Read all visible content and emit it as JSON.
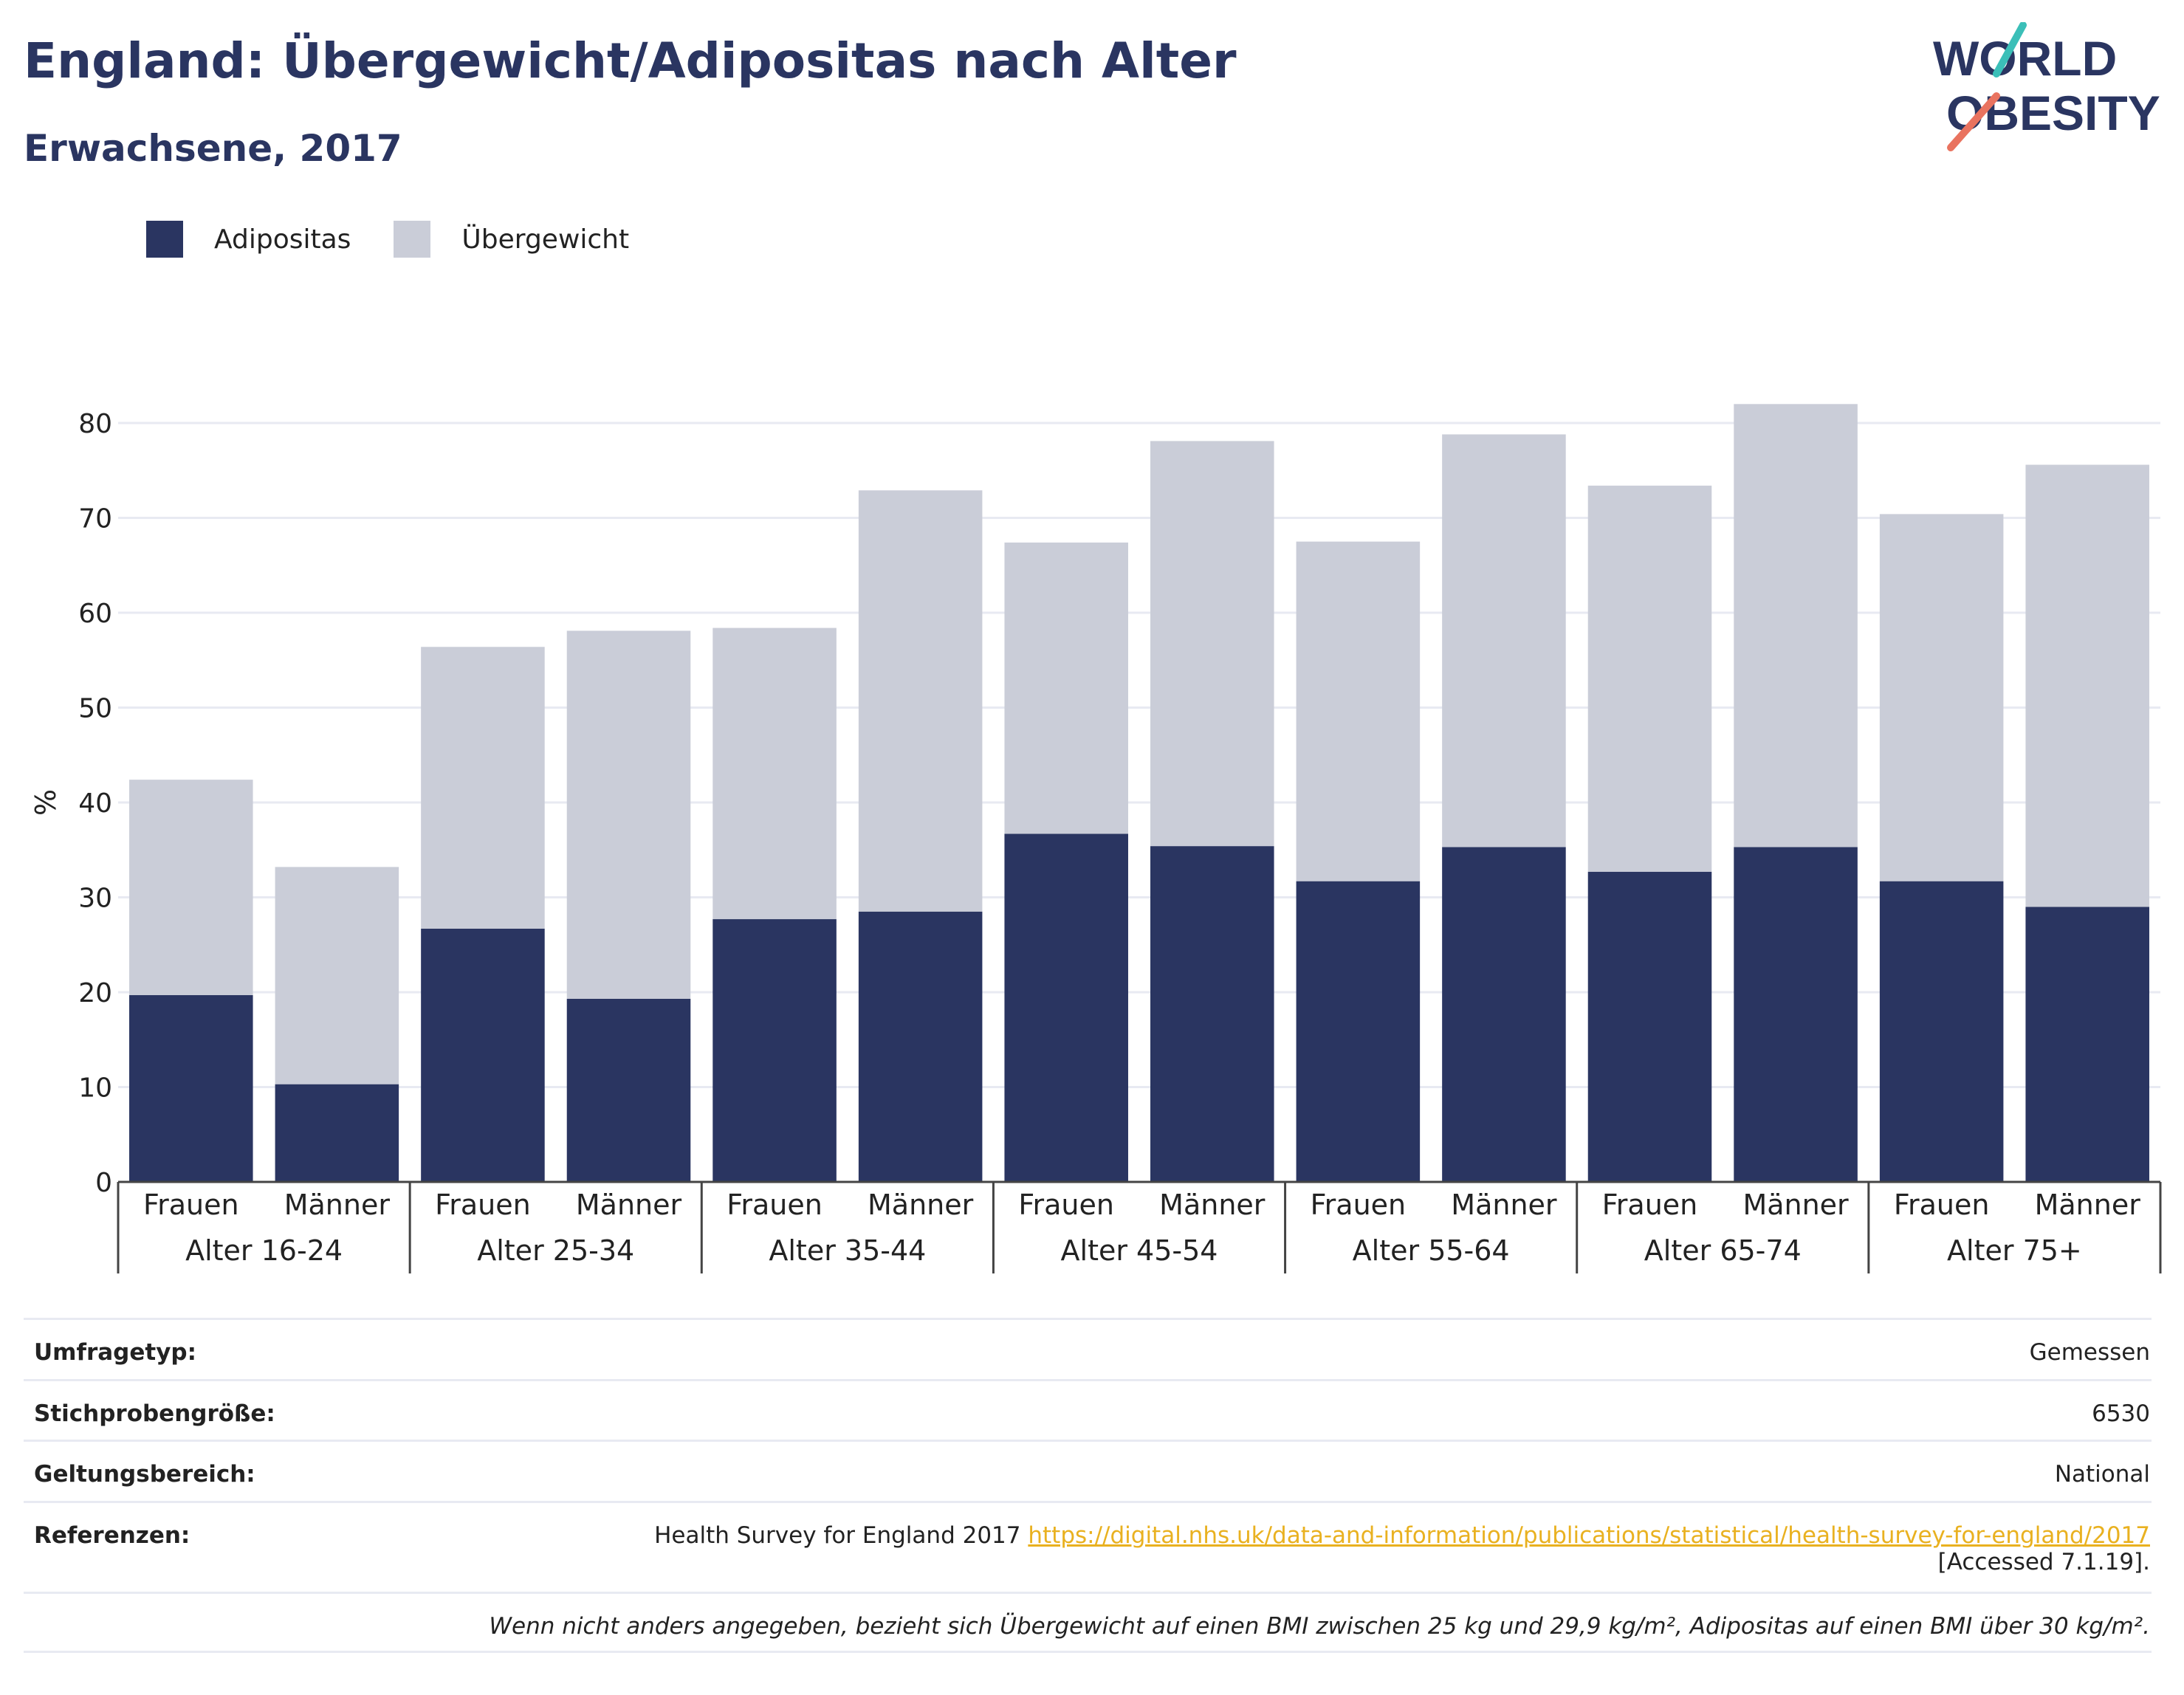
{
  "header": {
    "title": "England: Übergewicht/Adipositas nach Alter",
    "subtitle": "Erwachsene, 2017"
  },
  "logo": {
    "line1": "WORLD",
    "line2": "OBESITY"
  },
  "legend": [
    {
      "label": "Adipositas",
      "color": "#2a3561"
    },
    {
      "label": "Übergewicht",
      "color": "#cacdd8"
    }
  ],
  "chart_data": {
    "type": "bar",
    "stacked": true,
    "ylabel": "%",
    "ylim": [
      0,
      80
    ],
    "yticks": [
      0,
      10,
      20,
      30,
      40,
      50,
      60,
      70,
      80
    ],
    "grid": true,
    "legend_position": "top-left",
    "groups": [
      "Alter 16-24",
      "Alter 25-34",
      "Alter 35-44",
      "Alter 45-54",
      "Alter 55-64",
      "Alter 65-74",
      "Alter 75+"
    ],
    "categories": [
      "Frauen",
      "Männer",
      "Frauen",
      "Männer",
      "Frauen",
      "Männer",
      "Frauen",
      "Männer",
      "Frauen",
      "Männer",
      "Frauen",
      "Männer",
      "Frauen",
      "Männer"
    ],
    "series": [
      {
        "name": "Adipositas",
        "color": "#2a3561",
        "values": [
          19.7,
          10.3,
          26.7,
          19.3,
          27.7,
          28.5,
          36.7,
          35.4,
          31.7,
          35.3,
          32.7,
          35.3,
          31.7,
          29.0
        ]
      },
      {
        "name": "Übergewicht",
        "color": "#cacdd8",
        "values": [
          22.7,
          22.9,
          29.7,
          38.8,
          30.7,
          44.4,
          30.7,
          42.7,
          35.8,
          43.5,
          40.7,
          46.7,
          38.7,
          46.6
        ]
      }
    ]
  },
  "meta": {
    "survey_type_label": "Umfragetyp:",
    "survey_type_value": "Gemessen",
    "sample_size_label": "Stichprobengröße:",
    "sample_size_value": "6530",
    "scope_label": "Geltungsbereich:",
    "scope_value": "National",
    "references_label": "Referenzen:",
    "references_text": "Health Survey for England 2017",
    "references_link": "https://digital.nhs.uk/data-and-information/publications/statistical/health-survey-for-england/2017",
    "references_accessed": "[Accessed 7.1.19].",
    "footnote": "Wenn nicht anders angegeben, bezieht sich Übergewicht auf einen BMI zwischen 25 kg und 29,9 kg/m², Adipositas auf einen BMI über 30 kg/m²."
  }
}
